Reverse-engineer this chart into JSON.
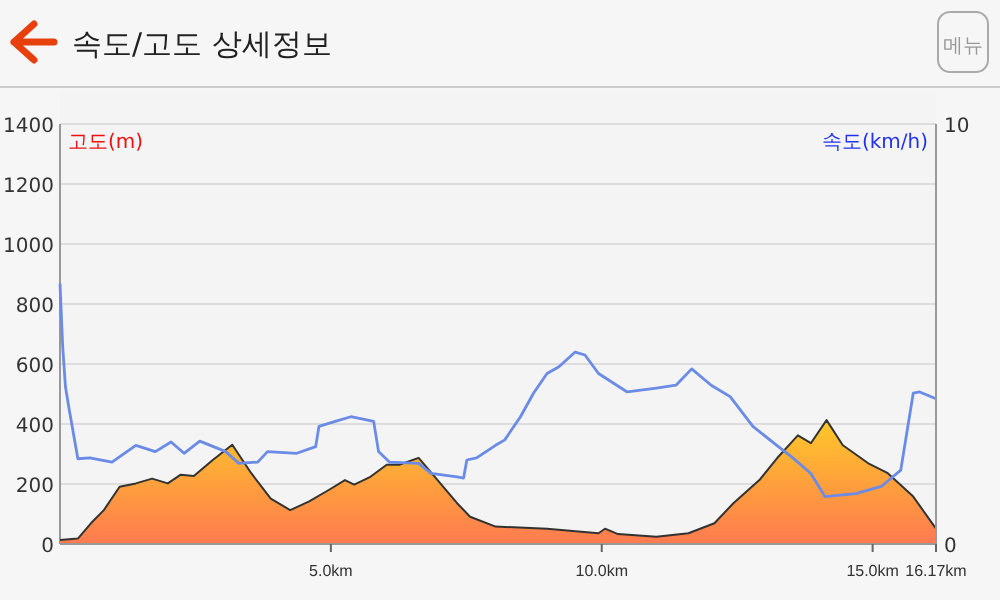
{
  "chart_data": {
    "type": "area",
    "title": "속도/고도 상세정보",
    "ylabel": "고도(m)",
    "y2label": "속도(km/h)",
    "annotations": [
      "메뉴"
    ],
    "xlim": [
      0,
      16.17
    ],
    "xticks": [
      {
        "value": 5,
        "label": "5.0km"
      },
      {
        "value": 10,
        "label": "10.0km"
      },
      {
        "value": 15,
        "label": "15.0km"
      },
      {
        "value": 16.17,
        "label": "16.17km"
      }
    ],
    "ylim": [
      0,
      1400
    ],
    "yticks": [
      0,
      200,
      400,
      600,
      800,
      1000,
      1200,
      1400
    ],
    "y2lim": [
      0,
      10
    ],
    "y2ticks": [
      0,
      10
    ],
    "grid": "y",
    "series": [
      {
        "color": "#ffc828",
        "x": [
          0,
          0.33,
          0.57,
          0.81,
          1.1,
          1.4,
          1.7,
          1.99,
          2.23,
          2.47,
          2.82,
          3.18,
          3.53,
          3.89,
          4.25,
          4.6,
          4.96,
          5.26,
          5.43,
          5.73,
          6.03,
          6.26,
          6.62,
          6.97,
          7.33,
          7.57,
          8.04,
          8.99,
          9.94,
          10.06,
          10.3,
          11.01,
          11.6,
          12.08,
          12.43,
          12.91,
          13.26,
          13.62,
          13.86,
          14.15,
          14.45,
          14.92,
          15.28,
          15.75,
          16.17
        ],
        "values": [
          13,
          18,
          69,
          113,
          191,
          202,
          218,
          202,
          231,
          227,
          280,
          331,
          236,
          151,
          113,
          142,
          180,
          213,
          198,
          224,
          264,
          264,
          287,
          213,
          136,
          91,
          58,
          51,
          36,
          51,
          33,
          24,
          36,
          69,
          136,
          213,
          291,
          362,
          336,
          413,
          329,
          269,
          236,
          158,
          51
        ]
      },
      {
        "type": "line",
        "axis": "y2",
        "color": "#6a8be6",
        "x": [
          0,
          0.05,
          0.1,
          0.17,
          0.33,
          0.55,
          0.96,
          1.4,
          1.76,
          2.05,
          2.29,
          2.58,
          3.06,
          3.3,
          3.65,
          3.83,
          4.37,
          4.72,
          4.78,
          5.08,
          5.37,
          5.79,
          5.88,
          6.08,
          6.62,
          6.85,
          7.33,
          7.45,
          7.51,
          7.69,
          8.04,
          8.21,
          8.5,
          8.74,
          8.99,
          9.21,
          9.51,
          9.69,
          9.94,
          10.47,
          11.01,
          11.37,
          11.66,
          12.02,
          12.37,
          12.79,
          13.26,
          13.5,
          13.86,
          14.12,
          14.69,
          15.16,
          15.52,
          15.75,
          15.87,
          16.17
        ],
        "values": [
          6.2,
          4.7,
          3.75,
          3.2,
          2.03,
          2.05,
          1.95,
          2.35,
          2.2,
          2.43,
          2.16,
          2.45,
          2.2,
          1.92,
          1.95,
          2.2,
          2.16,
          2.32,
          2.8,
          2.92,
          3.03,
          2.92,
          2.2,
          1.95,
          1.92,
          1.68,
          1.6,
          1.57,
          2.0,
          2.05,
          2.35,
          2.48,
          3.03,
          3.59,
          4.06,
          4.22,
          4.57,
          4.5,
          4.06,
          3.62,
          3.71,
          3.78,
          4.17,
          3.78,
          3.51,
          2.8,
          2.32,
          2.08,
          1.68,
          1.13,
          1.2,
          1.37,
          1.76,
          3.59,
          3.62,
          3.46
        ]
      }
    ]
  }
}
